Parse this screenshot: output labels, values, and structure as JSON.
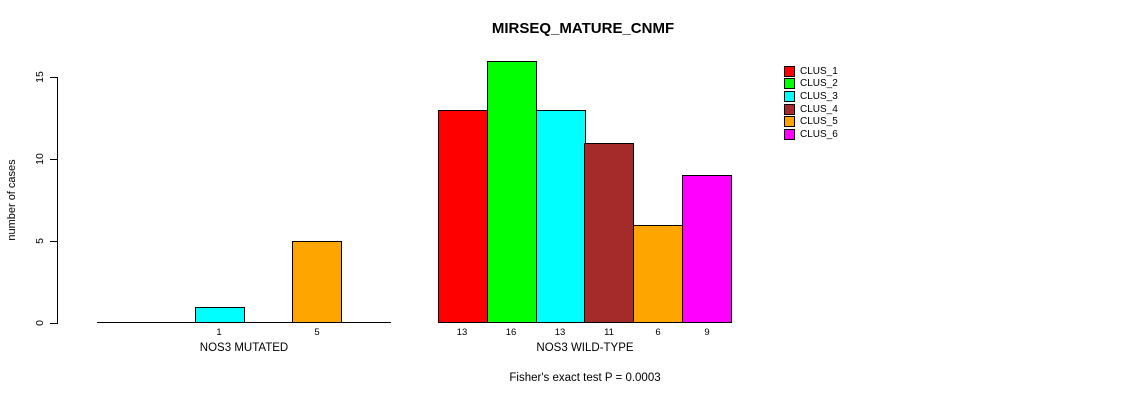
{
  "chart_data": {
    "type": "bar",
    "title": "MIRSEQ_MATURE_CNMF",
    "ylabel": "number of cases",
    "ylim": [
      0,
      16
    ],
    "yticks": [
      0,
      5,
      10,
      15
    ],
    "grid": false,
    "caption": "Fisher's exact test P = 0.0003",
    "clusters": [
      {
        "name": "CLUS_1",
        "color": "#FF0000"
      },
      {
        "name": "CLUS_2",
        "color": "#00FF00"
      },
      {
        "name": "CLUS_3",
        "color": "#00FFFF"
      },
      {
        "name": "CLUS_4",
        "color": "#A52A2A"
      },
      {
        "name": "CLUS_5",
        "color": "#FFA500"
      },
      {
        "name": "CLUS_6",
        "color": "#FF00FF"
      }
    ],
    "groups": [
      {
        "label": "NOS3 MUTATED",
        "values": [
          0,
          0,
          1,
          0,
          5,
          0
        ],
        "bar_labels": [
          "",
          "",
          "1",
          "",
          "5",
          ""
        ]
      },
      {
        "label": "NOS3 WILD-TYPE",
        "values": [
          13,
          16,
          13,
          11,
          6,
          9
        ],
        "bar_labels": [
          "13",
          "16",
          "13",
          "11",
          "6",
          "9"
        ]
      }
    ],
    "legend": {
      "position": "top-right",
      "entries": [
        "CLUS_1",
        "CLUS_2",
        "CLUS_3",
        "CLUS_4",
        "CLUS_5",
        "CLUS_6"
      ]
    }
  }
}
